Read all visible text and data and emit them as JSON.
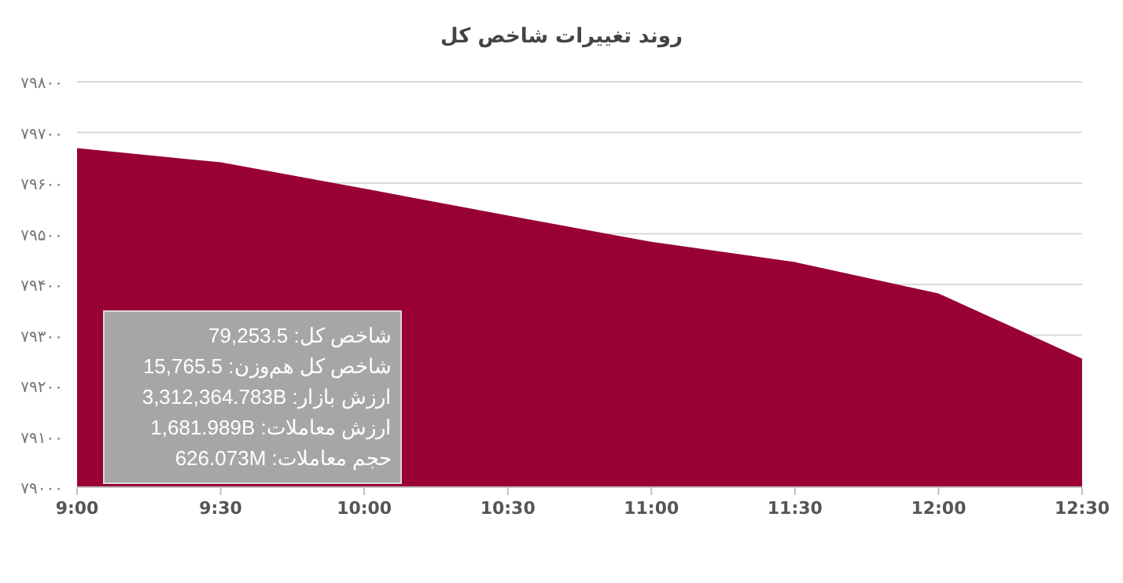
{
  "chart_data": {
    "type": "area",
    "title": "روند تغییرات شاخص کل",
    "categories": [
      "9:00",
      "9:30",
      "10:00",
      "10:30",
      "11:00",
      "11:30",
      "12:00",
      "12:30"
    ],
    "series": [
      {
        "color": "#990033",
        "values": [
          79669,
          79641,
          79589,
          79536,
          79484,
          79444,
          79382,
          79253.5
        ]
      }
    ],
    "ylim": [
      79000,
      79800
    ],
    "yticks": [
      {
        "value": 79000,
        "label": "۷۹۰۰۰"
      },
      {
        "value": 79100,
        "label": "۷۹۱۰۰"
      },
      {
        "value": 79200,
        "label": "۷۹۲۰۰"
      },
      {
        "value": 79300,
        "label": "۷۹۳۰۰"
      },
      {
        "value": 79400,
        "label": "۷۹۴۰۰"
      },
      {
        "value": 79500,
        "label": "۷۹۵۰۰"
      },
      {
        "value": 79600,
        "label": "۷۹۶۰۰"
      },
      {
        "value": 79700,
        "label": "۷۹۷۰۰"
      },
      {
        "value": 79800,
        "label": "۷۹۸۰۰"
      }
    ],
    "grid": "y",
    "annotations": [
      "شاخص کل: 79,253.5",
      "شاخص کل هم‌وزن: 15,765.5",
      "ارزش بازار: 3,312,364.783B",
      "ارزش معاملات: 1,681.989B",
      "حجم معاملات: 626.073M"
    ]
  }
}
